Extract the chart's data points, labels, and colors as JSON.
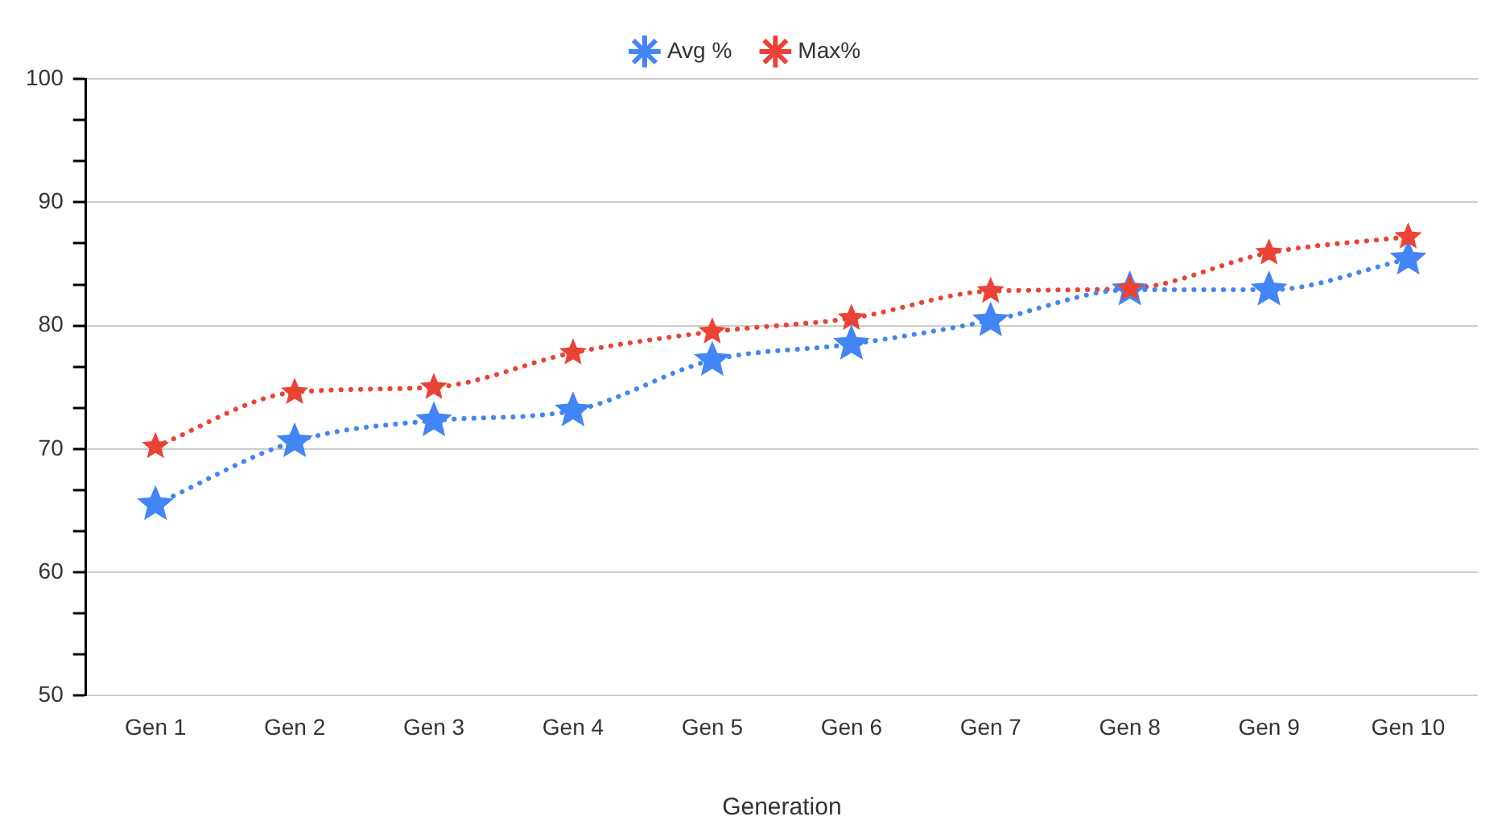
{
  "chart_data": {
    "type": "line",
    "xlabel": "Generation",
    "categories": [
      "Gen 1",
      "Gen 2",
      "Gen 3",
      "Gen 4",
      "Gen 5",
      "Gen 6",
      "Gen 7",
      "Gen 8",
      "Gen 9",
      "Gen 10"
    ],
    "series": [
      {
        "name": "Avg %",
        "color": "#4285f4",
        "values": [
          65.5,
          70.6,
          72.3,
          73.1,
          77.2,
          78.5,
          80.4,
          82.9,
          82.9,
          85.4
        ]
      },
      {
        "name": "Max%",
        "color": "#ea4335",
        "values": [
          70.2,
          74.6,
          75.0,
          77.8,
          79.5,
          80.6,
          82.8,
          83.0,
          85.9,
          87.2
        ]
      }
    ],
    "ylim": [
      50,
      100
    ],
    "yticks": [
      50,
      {
        "value": 53.33,
        "label": null
      },
      {
        "value": 56.67,
        "label": null
      },
      60,
      {
        "value": 63.33,
        "label": null
      },
      {
        "value": 66.67,
        "label": null
      },
      70,
      {
        "value": 73.33,
        "label": null
      },
      {
        "value": 76.67,
        "label": null
      },
      80,
      {
        "value": 83.33,
        "label": null
      },
      {
        "value": 86.67,
        "label": null
      },
      90,
      {
        "value": 93.33,
        "label": null
      },
      {
        "value": 96.67,
        "label": null
      },
      100
    ],
    "grid": "y",
    "legend": "top",
    "marker": "star",
    "line_style": "dotted"
  }
}
